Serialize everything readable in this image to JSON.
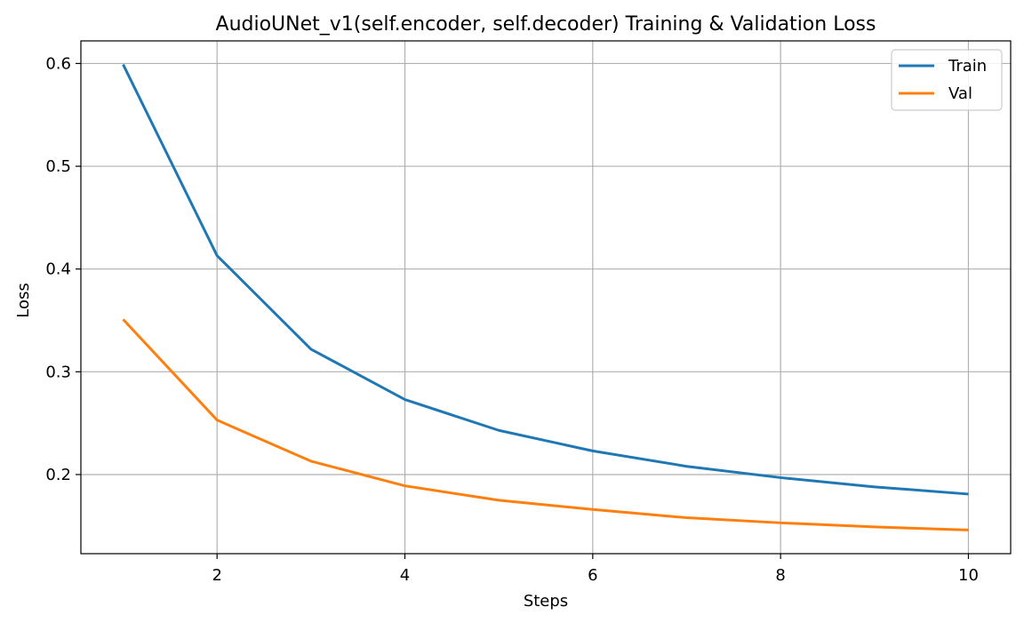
{
  "chart_data": {
    "type": "line",
    "title": "AudioUNet_v1(self.encoder, self.decoder) Training & Validation Loss",
    "xlabel": "Steps",
    "ylabel": "Loss",
    "x": [
      1,
      2,
      3,
      4,
      5,
      6,
      7,
      8,
      9,
      10
    ],
    "xlim": [
      0.55,
      10.45
    ],
    "ylim": [
      0.123,
      0.622
    ],
    "xticks": [
      2,
      4,
      6,
      8,
      10
    ],
    "xtick_labels": [
      "2",
      "4",
      "6",
      "8",
      "10"
    ],
    "yticks": [
      0.2,
      0.3,
      0.4,
      0.5,
      0.6
    ],
    "ytick_labels": [
      "0.2",
      "0.3",
      "0.4",
      "0.5",
      "0.6"
    ],
    "grid": true,
    "legend_position": "top-right",
    "series": [
      {
        "name": "Train",
        "color": "#1f77b4",
        "values": [
          0.599,
          0.413,
          0.322,
          0.273,
          0.243,
          0.223,
          0.208,
          0.197,
          0.188,
          0.181
        ]
      },
      {
        "name": "Val",
        "color": "#ff7f0e",
        "values": [
          0.351,
          0.253,
          0.213,
          0.189,
          0.175,
          0.166,
          0.158,
          0.153,
          0.149,
          0.146
        ]
      }
    ]
  }
}
